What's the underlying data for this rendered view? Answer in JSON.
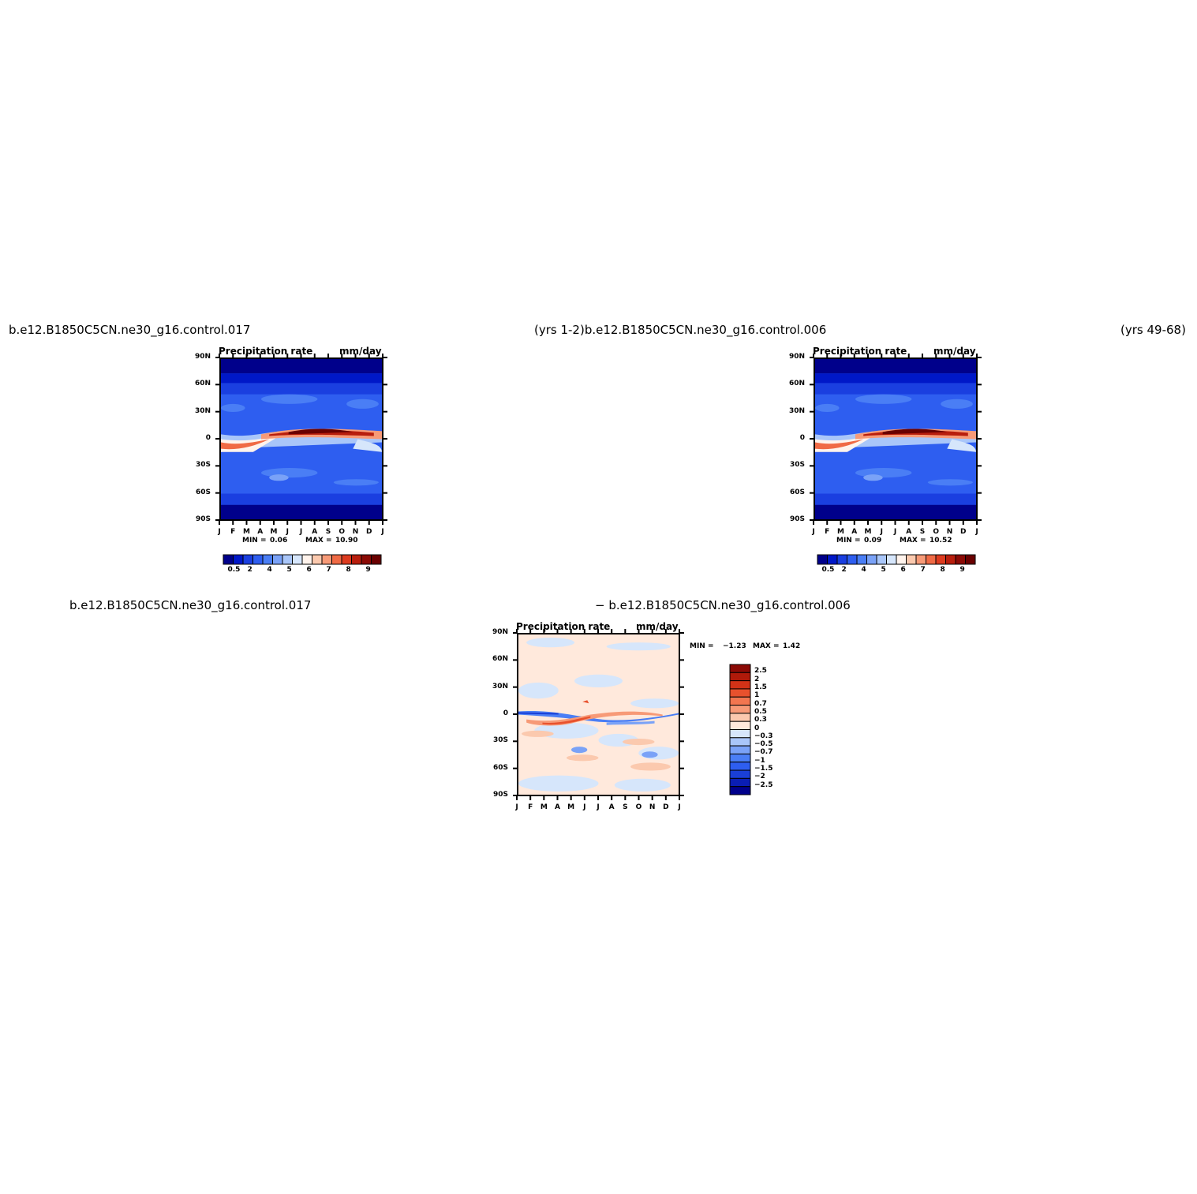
{
  "titles": {
    "top_left": "b.e12.B1850C5CN.ne30_g16.control.017",
    "top_center": "(yrs  1-2)b.e12.B1850C5CN.ne30_g16.control.006",
    "top_right": "(yrs  49-68)",
    "bottom_left": "b.e12.B1850C5CN.ne30_g16.control.017",
    "bottom_center": "−  b.e12.B1850C5CN.ne30_g16.control.006"
  },
  "colors": {
    "abs_scale": [
      "#00008b",
      "#0018c8",
      "#1a3fe0",
      "#2e5ef0",
      "#4a7ef5",
      "#7aa2f7",
      "#a9c6f9",
      "#d6e6fb",
      "#fff3ec",
      "#fbc9ae",
      "#f79a77",
      "#f06a45",
      "#dd3b1f",
      "#b81e0d",
      "#8b0a05",
      "#6a0000"
    ],
    "diff_scale": [
      "#00008b",
      "#0a1eb4",
      "#1a3fd6",
      "#2e5ef0",
      "#4a7ef5",
      "#7aa2f7",
      "#a9c6f9",
      "#d6e6fb",
      "#ffe9dc",
      "#fbc9ae",
      "#f79a77",
      "#f27650",
      "#e8512d",
      "#d23217",
      "#b01a0a",
      "#8b0a05"
    ]
  },
  "chart_data": [
    {
      "type": "heatmap",
      "title": "Precipitation  rate",
      "units": "mm/day",
      "x": [
        "J",
        "F",
        "M",
        "A",
        "M",
        "J",
        "J",
        "A",
        "S",
        "O",
        "N",
        "D",
        "J"
      ],
      "y": [
        "90N",
        "60N",
        "30N",
        "0",
        "30S",
        "60S",
        "90S"
      ],
      "min": "0.06",
      "max": "10.90",
      "min_label": "MIN =",
      "max_label": "MAX =",
      "colorbar_labels": [
        "0.5",
        "2",
        "4",
        "5",
        "6",
        "7",
        "8",
        "9"
      ],
      "field": "zonal mean precipitation, ITCZ max ~10.9 mm/day near equator in NH summer"
    },
    {
      "type": "heatmap",
      "title": "Precipitation  rate",
      "units": "mm/day",
      "x": [
        "J",
        "F",
        "M",
        "A",
        "M",
        "J",
        "J",
        "A",
        "S",
        "O",
        "N",
        "D",
        "J"
      ],
      "y": [
        "90N",
        "60N",
        "30N",
        "0",
        "30S",
        "60S",
        "90S"
      ],
      "min": "0.09",
      "max": "10.52",
      "min_label": "MIN =",
      "max_label": "MAX =",
      "colorbar_labels": [
        "0.5",
        "2",
        "4",
        "5",
        "6",
        "7",
        "8",
        "9"
      ]
    },
    {
      "type": "heatmap",
      "title": "Precipitation  rate",
      "units": "mm/day",
      "x": [
        "J",
        "F",
        "M",
        "A",
        "M",
        "J",
        "J",
        "A",
        "S",
        "O",
        "N",
        "D",
        "J"
      ],
      "y": [
        "90N",
        "60N",
        "30N",
        "0",
        "30S",
        "60S",
        "90S"
      ],
      "min": "−1.23",
      "max": "1.42",
      "min_label": "MIN =",
      "max_label": "MAX =",
      "colorbar_labels": [
        "2.5",
        "2",
        "1.5",
        "1",
        "0.7",
        "0.5",
        "0.3",
        "0",
        "−0.3",
        "−0.5",
        "−0.7",
        "−1",
        "−1.5",
        "−2",
        "−2.5"
      ]
    }
  ]
}
